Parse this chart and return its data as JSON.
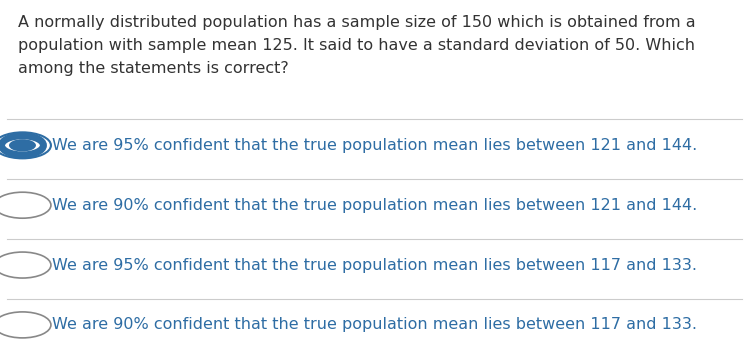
{
  "background_color": "#ffffff",
  "question_text": "A normally distributed population has a sample size of 150 which is obtained from a\npopulation with sample mean 125. It said to have a standard deviation of 50. Which\namong the statements is correct?",
  "question_color": "#333333",
  "question_fontsize": 11.5,
  "options": [
    "We are 95% confident that the true population mean lies between 121 and 144.",
    "We are 90% confident that the true population mean lies between 121 and 144.",
    "We are 95% confident that the true population mean lies between 117 and 133.",
    "We are 90% confident that the true population mean lies between 117 and 133."
  ],
  "option_color": "#2E6DA4",
  "option_fontsize": 11.5,
  "selected_index": 0,
  "divider_color": "#cccccc",
  "radio_color_selected": "#2E6DA4",
  "radio_color_unselected": "#888888"
}
